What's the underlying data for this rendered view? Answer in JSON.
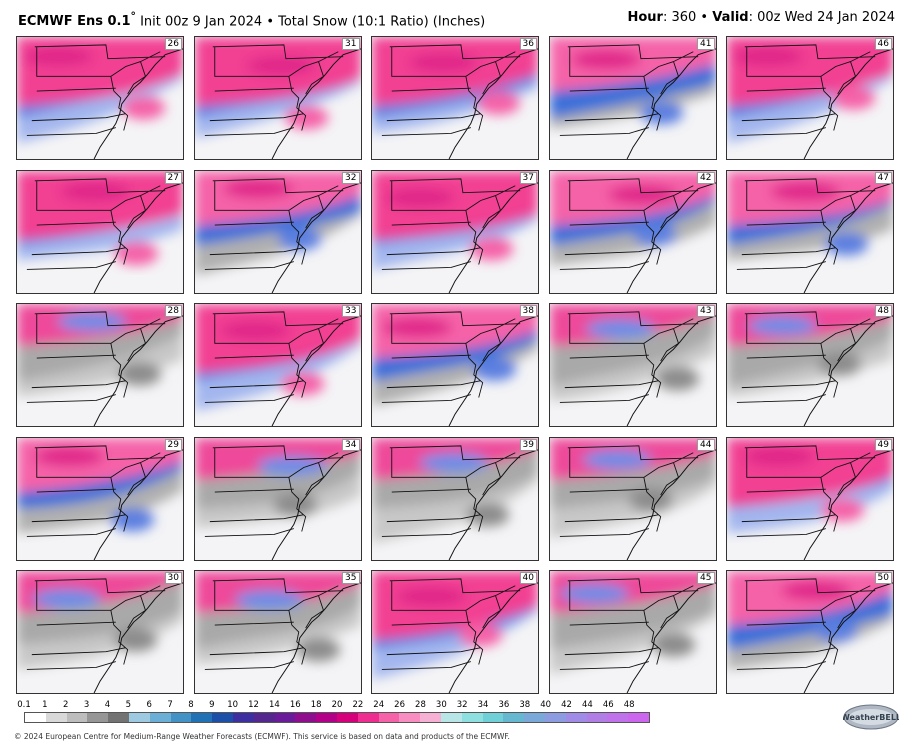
{
  "header": {
    "model": "ECMWF Ens 0.1",
    "degree": "°",
    "init": "Init 00z 9 Jan 2024",
    "separator": "•",
    "product": "Total Snow (10:1 Ratio) (Inches)",
    "hour_label": "Hour",
    "hour_value": ": 360",
    "valid_label": "Valid",
    "valid_value": ": 00z Wed 24 Jan 2024"
  },
  "panels": [
    {
      "member": "26",
      "intensity": "high"
    },
    {
      "member": "31",
      "intensity": "high"
    },
    {
      "member": "36",
      "intensity": "high"
    },
    {
      "member": "41",
      "intensity": "med"
    },
    {
      "member": "46",
      "intensity": "high"
    },
    {
      "member": "27",
      "intensity": "high"
    },
    {
      "member": "32",
      "intensity": "med"
    },
    {
      "member": "37",
      "intensity": "high"
    },
    {
      "member": "42",
      "intensity": "med"
    },
    {
      "member": "47",
      "intensity": "med"
    },
    {
      "member": "28",
      "intensity": "low"
    },
    {
      "member": "33",
      "intensity": "high"
    },
    {
      "member": "38",
      "intensity": "med"
    },
    {
      "member": "43",
      "intensity": "low"
    },
    {
      "member": "48",
      "intensity": "low"
    },
    {
      "member": "29",
      "intensity": "med"
    },
    {
      "member": "34",
      "intensity": "low"
    },
    {
      "member": "39",
      "intensity": "low"
    },
    {
      "member": "44",
      "intensity": "low"
    },
    {
      "member": "49",
      "intensity": "high"
    },
    {
      "member": "30",
      "intensity": "low"
    },
    {
      "member": "35",
      "intensity": "low"
    },
    {
      "member": "40",
      "intensity": "high"
    },
    {
      "member": "45",
      "intensity": "low"
    },
    {
      "member": "50",
      "intensity": "med"
    }
  ],
  "colorbar": {
    "labels": [
      "0.1",
      "1",
      "2",
      "3",
      "4",
      "5",
      "6",
      "7",
      "8",
      "9",
      "10",
      "12",
      "14",
      "16",
      "18",
      "20",
      "22",
      "24",
      "26",
      "28",
      "30",
      "32",
      "34",
      "36",
      "38",
      "40",
      "42",
      "44",
      "46",
      "48"
    ],
    "colors": [
      "#ffffff",
      "#d9d9d9",
      "#bdbdbd",
      "#969696",
      "#737373",
      "#9ecae1",
      "#6baed6",
      "#4292c6",
      "#2171b5",
      "#1c4fa8",
      "#3d2fa0",
      "#54278f",
      "#6a1b9a",
      "#8e0e8e",
      "#b30089",
      "#d6007a",
      "#ef2c8f",
      "#f562a8",
      "#f78dc0",
      "#f6b0d4",
      "#b8e6e6",
      "#8ee0e0",
      "#6fd0d8",
      "#66b8d0",
      "#7aa8d8",
      "#8d9ce0",
      "#a08ce6",
      "#b17ee6",
      "#c072ea",
      "#cc66ee"
    ]
  },
  "footer": {
    "copyright": "© 2024 European Centre for Medium-Range Weather Forecasts (ECMWF). This service is based on data and products of the ECMWF."
  },
  "logo": {
    "text": "WeatherBELL",
    "icon": "weatherbell-logo-icon"
  }
}
